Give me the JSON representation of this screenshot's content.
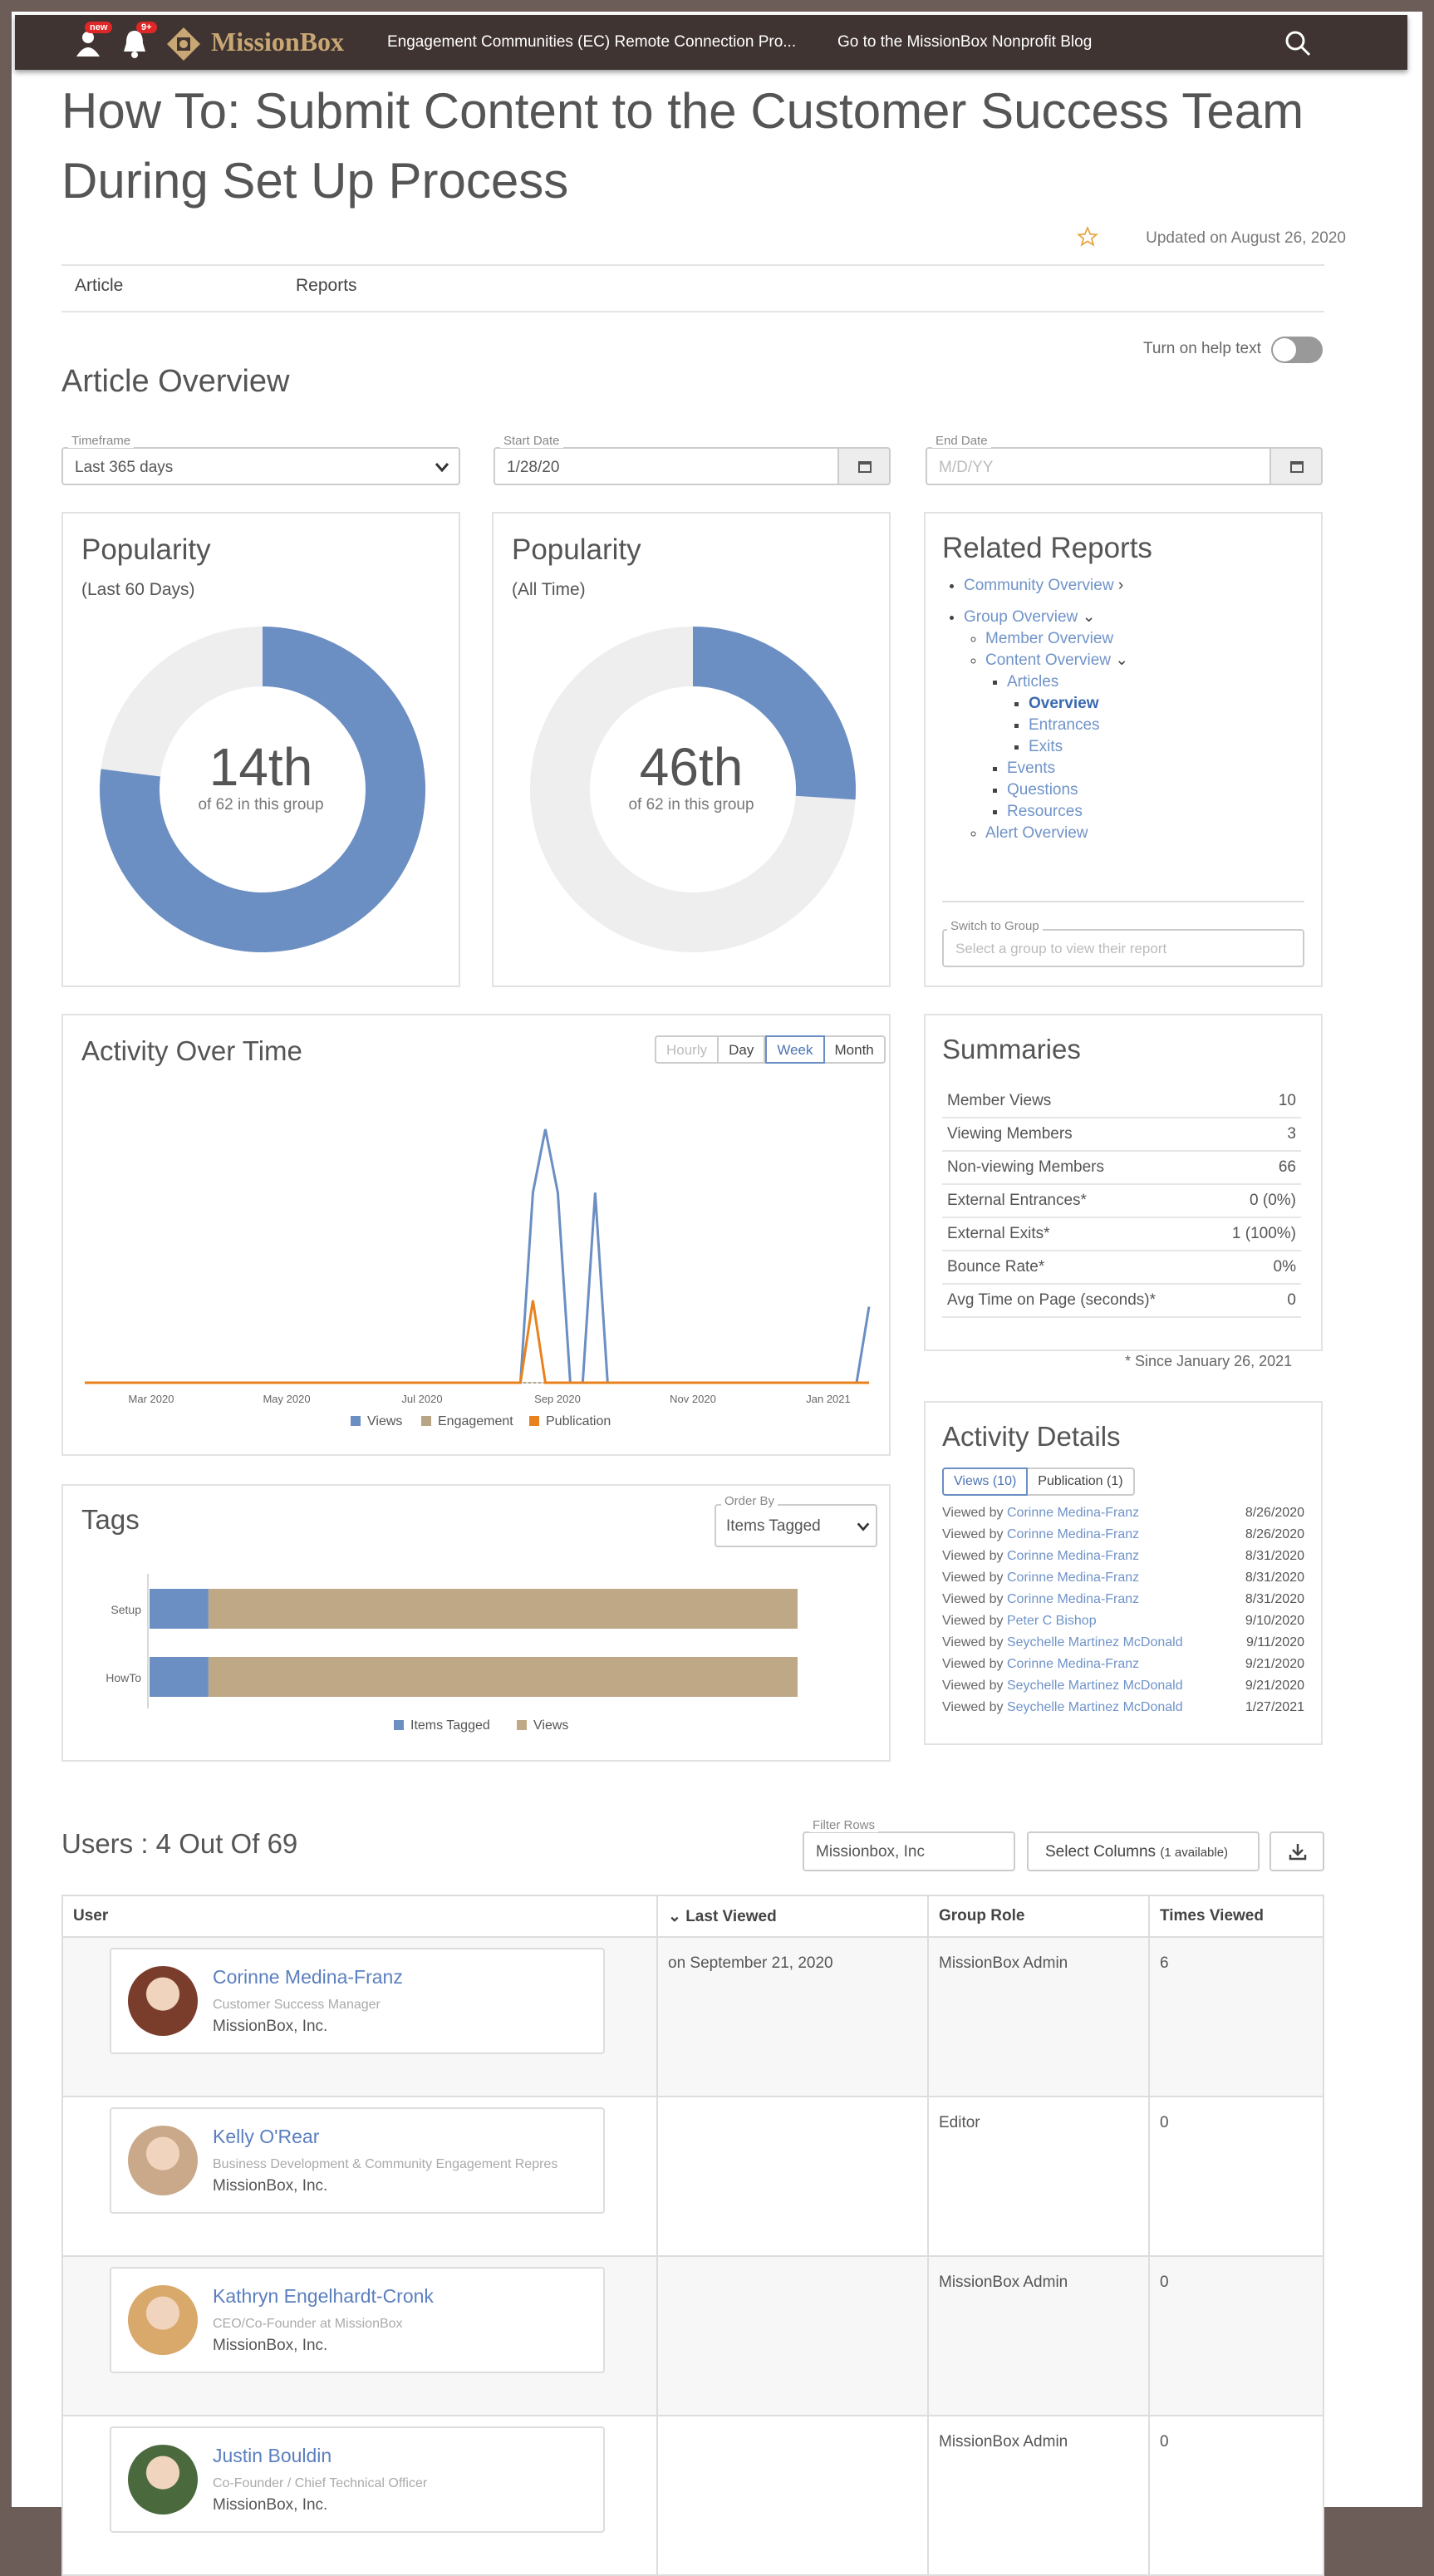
{
  "topbar": {
    "new_badge": "new",
    "notif_badge": "9+",
    "brand": "MissionBox",
    "nav1": "Engagement Communities (EC) Remote Connection Pro...",
    "nav2": "Go to the MissionBox Nonprofit Blog"
  },
  "article": {
    "title": "How To: Submit Content to the Customer Success Team During Set Up Process",
    "updated": "Updated on August 26, 2020",
    "tabs": [
      "Article",
      "Reports"
    ]
  },
  "help_text": "Turn on help text",
  "overview": {
    "heading": "Article Overview",
    "timeframe_label": "Timeframe",
    "timeframe_value": "Last 365 days",
    "start_label": "Start Date",
    "start_value": "1/28/20",
    "end_label": "End Date",
    "end_placeholder": "M/D/YY"
  },
  "popularity_60": {
    "title": "Popularity",
    "subtitle": "(Last 60 Days)",
    "rank": "14th",
    "of": "of 62 in this group",
    "fraction": 0.77
  },
  "popularity_all": {
    "title": "Popularity",
    "subtitle": "(All Time)",
    "rank": "46th",
    "of": "of 62 in this group",
    "fraction": 0.26
  },
  "related": {
    "title": "Related Reports",
    "community": "Community Overview",
    "group": "Group Overview",
    "member": "Member Overview",
    "content": "Content Overview",
    "articles": "Articles",
    "overview": "Overview",
    "entrances": "Entrances",
    "exits": "Exits",
    "events": "Events",
    "questions": "Questions",
    "resources": "Resources",
    "alert": "Alert Overview",
    "switch_label": "Switch to Group",
    "switch_placeholder": "Select a group to view their report"
  },
  "activity": {
    "title": "Activity Over Time",
    "buttons": [
      "Hourly",
      "Day",
      "Week",
      "Month"
    ]
  },
  "chart_data": [
    {
      "type": "line",
      "title": "Activity Over Time",
      "x_ticks": [
        "Mar 2020",
        "May 2020",
        "Jul 2020",
        "Sep 2020",
        "Nov 2020",
        "Jan 2021"
      ],
      "series": [
        {
          "name": "Views",
          "color": "#6b8ec3",
          "points": [
            [
              0,
              0
            ],
            [
              35,
              0
            ],
            [
              36,
              3
            ],
            [
              37,
              4
            ],
            [
              38,
              3
            ],
            [
              39,
              0
            ],
            [
              40,
              0
            ],
            [
              41,
              3
            ],
            [
              42,
              0
            ],
            [
              62,
              0
            ],
            [
              63,
              1.2
            ]
          ]
        },
        {
          "name": "Engagement",
          "color": "#b8a585",
          "points": [
            [
              0,
              0
            ],
            [
              63,
              0
            ]
          ]
        },
        {
          "name": "Publication",
          "color": "#e8821e",
          "points": [
            [
              0,
              0
            ],
            [
              35,
              0
            ],
            [
              36,
              1.3
            ],
            [
              37,
              0
            ],
            [
              63,
              0
            ]
          ]
        }
      ],
      "x_range": [
        0,
        63
      ],
      "y_range": [
        0,
        4.3
      ]
    },
    {
      "type": "bar",
      "title": "Tags",
      "categories": [
        "Setup",
        "HowTo"
      ],
      "series": [
        {
          "name": "Items Tagged",
          "color": "#6b8ec3",
          "values": [
            1,
            1
          ]
        },
        {
          "name": "Views",
          "color": "#bfa886",
          "values": [
            10,
            10
          ]
        }
      ]
    }
  ],
  "summaries": {
    "title": "Summaries",
    "rows": [
      {
        "label": "Member Views",
        "value": "10"
      },
      {
        "label": "Viewing Members",
        "value": "3"
      },
      {
        "label": "Non-viewing Members",
        "value": "66"
      },
      {
        "label": "External Entrances*",
        "value": "0 (0%)"
      },
      {
        "label": "External Exits*",
        "value": "1 (100%)"
      },
      {
        "label": "Bounce Rate*",
        "value": "0%"
      },
      {
        "label": "Avg Time on Page (seconds)*",
        "value": "0"
      }
    ],
    "since": "* Since January 26, 2021"
  },
  "details": {
    "title": "Activity Details",
    "tab_views": "Views (10)",
    "tab_pub": "Publication (1)",
    "viewed_by": "Viewed by",
    "rows": [
      {
        "name": "Corinne Medina-Franz",
        "date": "8/26/2020"
      },
      {
        "name": "Corinne Medina-Franz",
        "date": "8/26/2020"
      },
      {
        "name": "Corinne Medina-Franz",
        "date": "8/31/2020"
      },
      {
        "name": "Corinne Medina-Franz",
        "date": "8/31/2020"
      },
      {
        "name": "Corinne Medina-Franz",
        "date": "8/31/2020"
      },
      {
        "name": "Peter C Bishop",
        "date": "9/10/2020"
      },
      {
        "name": "Seychelle Martinez McDonald",
        "date": "9/11/2020"
      },
      {
        "name": "Corinne Medina-Franz",
        "date": "9/21/2020"
      },
      {
        "name": "Seychelle Martinez McDonald",
        "date": "9/21/2020"
      },
      {
        "name": "Seychelle Martinez McDonald",
        "date": "1/27/2021"
      }
    ]
  },
  "tags": {
    "title": "Tags",
    "order_label": "Order By",
    "order_value": "Items Tagged"
  },
  "users": {
    "heading": "Users : 4 Out Of 69",
    "filter_label": "Filter Rows",
    "filter_value": "Missionbox, Inc",
    "select_columns": "Select Columns",
    "select_columns_note": "(1 available)",
    "headers": [
      "User",
      "Last Viewed",
      "Group Role",
      "Times Viewed"
    ],
    "rows": [
      {
        "name": "Corinne Medina-Franz",
        "title": "Customer Success Manager",
        "org": "MissionBox, Inc.",
        "last": "on September 21, 2020",
        "role": "MissionBox Admin",
        "times": "6",
        "avatar_color": "#7a3d2c"
      },
      {
        "name": "Kelly O'Rear",
        "title": "Business Development & Community Engagement Repres",
        "org": "MissionBox, Inc.",
        "last": "",
        "role": "Editor",
        "times": "0",
        "avatar_color": "#c9a98a"
      },
      {
        "name": "Kathryn Engelhardt-Cronk",
        "title": "CEO/Co-Founder at MissionBox",
        "org": "MissionBox, Inc.",
        "last": "",
        "role": "MissionBox Admin",
        "times": "0",
        "avatar_color": "#d9a86b"
      },
      {
        "name": "Justin Bouldin",
        "title": "Co-Founder / Chief Technical Officer",
        "org": "MissionBox, Inc.",
        "last": "",
        "role": "MissionBox Admin",
        "times": "0",
        "avatar_color": "#4a6a3e"
      }
    ]
  }
}
